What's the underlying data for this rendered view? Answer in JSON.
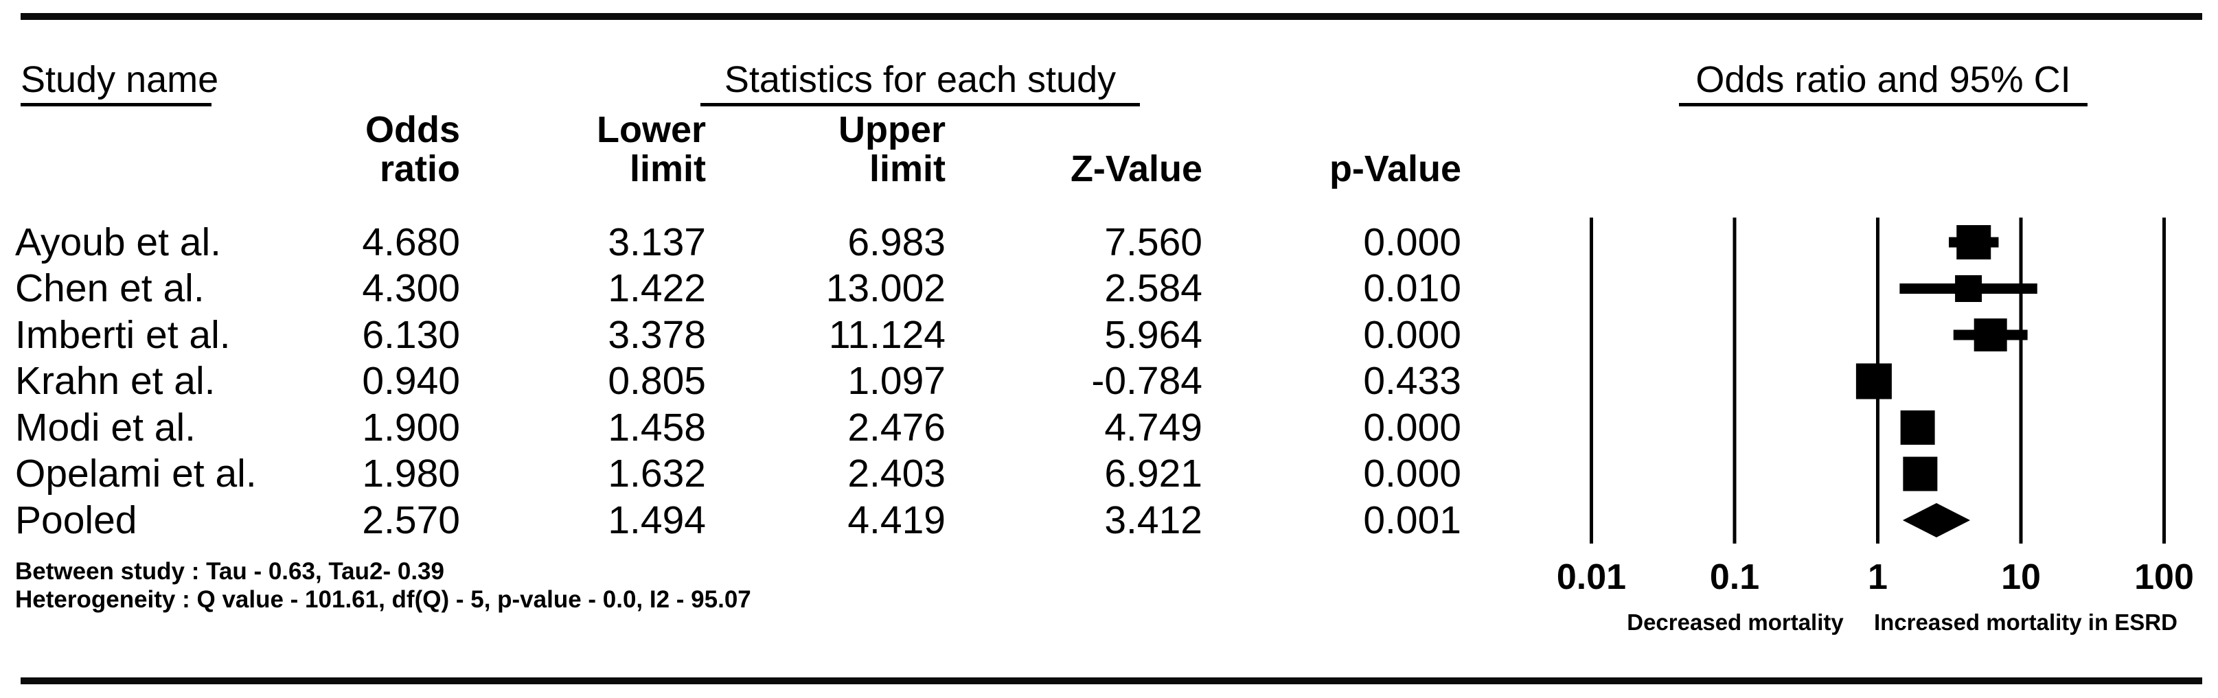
{
  "figure": {
    "headers": {
      "study_name": "Study name",
      "statistics": "Statistics for each study",
      "or_ci": "Odds ratio and 95% CI"
    },
    "columns": {
      "odds_ratio": "Odds\nratio",
      "lower_limit": "Lower\nlimit",
      "upper_limit": "Upper\nlimit",
      "z_value": "Z-Value",
      "p_value": "p-Value"
    },
    "rows": [
      {
        "name": "Ayoub et al.",
        "odds_ratio": "4.680",
        "lower": "3.137",
        "upper": "6.983",
        "z": "7.560",
        "p": "0.000"
      },
      {
        "name": "Chen et al.",
        "odds_ratio": "4.300",
        "lower": "1.422",
        "upper": "13.002",
        "z": "2.584",
        "p": "0.010"
      },
      {
        "name": "Imberti et al.",
        "odds_ratio": "6.130",
        "lower": "3.378",
        "upper": "11.124",
        "z": "5.964",
        "p": "0.000"
      },
      {
        "name": "Krahn et al.",
        "odds_ratio": "0.940",
        "lower": "0.805",
        "upper": "1.097",
        "z": "-0.784",
        "p": "0.433"
      },
      {
        "name": "Modi et al.",
        "odds_ratio": "1.900",
        "lower": "1.458",
        "upper": "2.476",
        "z": "4.749",
        "p": "0.000"
      },
      {
        "name": "Opelami et al.",
        "odds_ratio": "1.980",
        "lower": "1.632",
        "upper": "2.403",
        "z": "6.921",
        "p": "0.000"
      },
      {
        "name": "Pooled",
        "odds_ratio": "2.570",
        "lower": "1.494",
        "upper": "4.419",
        "z": "3.412",
        "p": "0.001"
      }
    ],
    "footnotes": [
      "Between study : Tau - 0.63, Tau2- 0.39",
      "Heterogeneity : Q value - 101.61, df(Q) - 5, p-value - 0.0, I2 - 95.07"
    ]
  },
  "chart_data": {
    "type": "forest",
    "x_scale": "log10",
    "xlim": [
      0.01,
      100
    ],
    "axis_ticks": [
      {
        "value": 0.01,
        "label": "0.01"
      },
      {
        "value": 0.1,
        "label": "0.1"
      },
      {
        "value": 1,
        "label": "1"
      },
      {
        "value": 10,
        "label": "10"
      },
      {
        "value": 100,
        "label": "100"
      }
    ],
    "direction_labels": {
      "left": "Decreased mortality",
      "right": "Increased mortality in ESRD"
    },
    "studies": [
      {
        "name": "Ayoub et al.",
        "or": 4.68,
        "ci": [
          3.137,
          6.983
        ],
        "marker": "square",
        "marker_size": 50
      },
      {
        "name": "Chen et al.",
        "or": 4.3,
        "ci": [
          1.422,
          13.002
        ],
        "marker": "square",
        "marker_size": 39
      },
      {
        "name": "Imberti et al.",
        "or": 6.13,
        "ci": [
          3.378,
          11.124
        ],
        "marker": "square",
        "marker_size": 48
      },
      {
        "name": "Krahn et al.",
        "or": 0.94,
        "ci": [
          0.805,
          1.097
        ],
        "marker": "square",
        "marker_size": 52
      },
      {
        "name": "Modi et al.",
        "or": 1.9,
        "ci": [
          1.458,
          2.476
        ],
        "marker": "square",
        "marker_size": 50
      },
      {
        "name": "Opelami et al.",
        "or": 1.98,
        "ci": [
          1.632,
          2.403
        ],
        "marker": "square",
        "marker_size": 50
      },
      {
        "name": "Pooled",
        "or": 2.57,
        "ci": [
          1.494,
          4.419
        ],
        "marker": "diamond",
        "marker_size": 50
      }
    ],
    "colors": {
      "marker": "#000000",
      "gridline": "#000000",
      "text": "#000000"
    }
  }
}
